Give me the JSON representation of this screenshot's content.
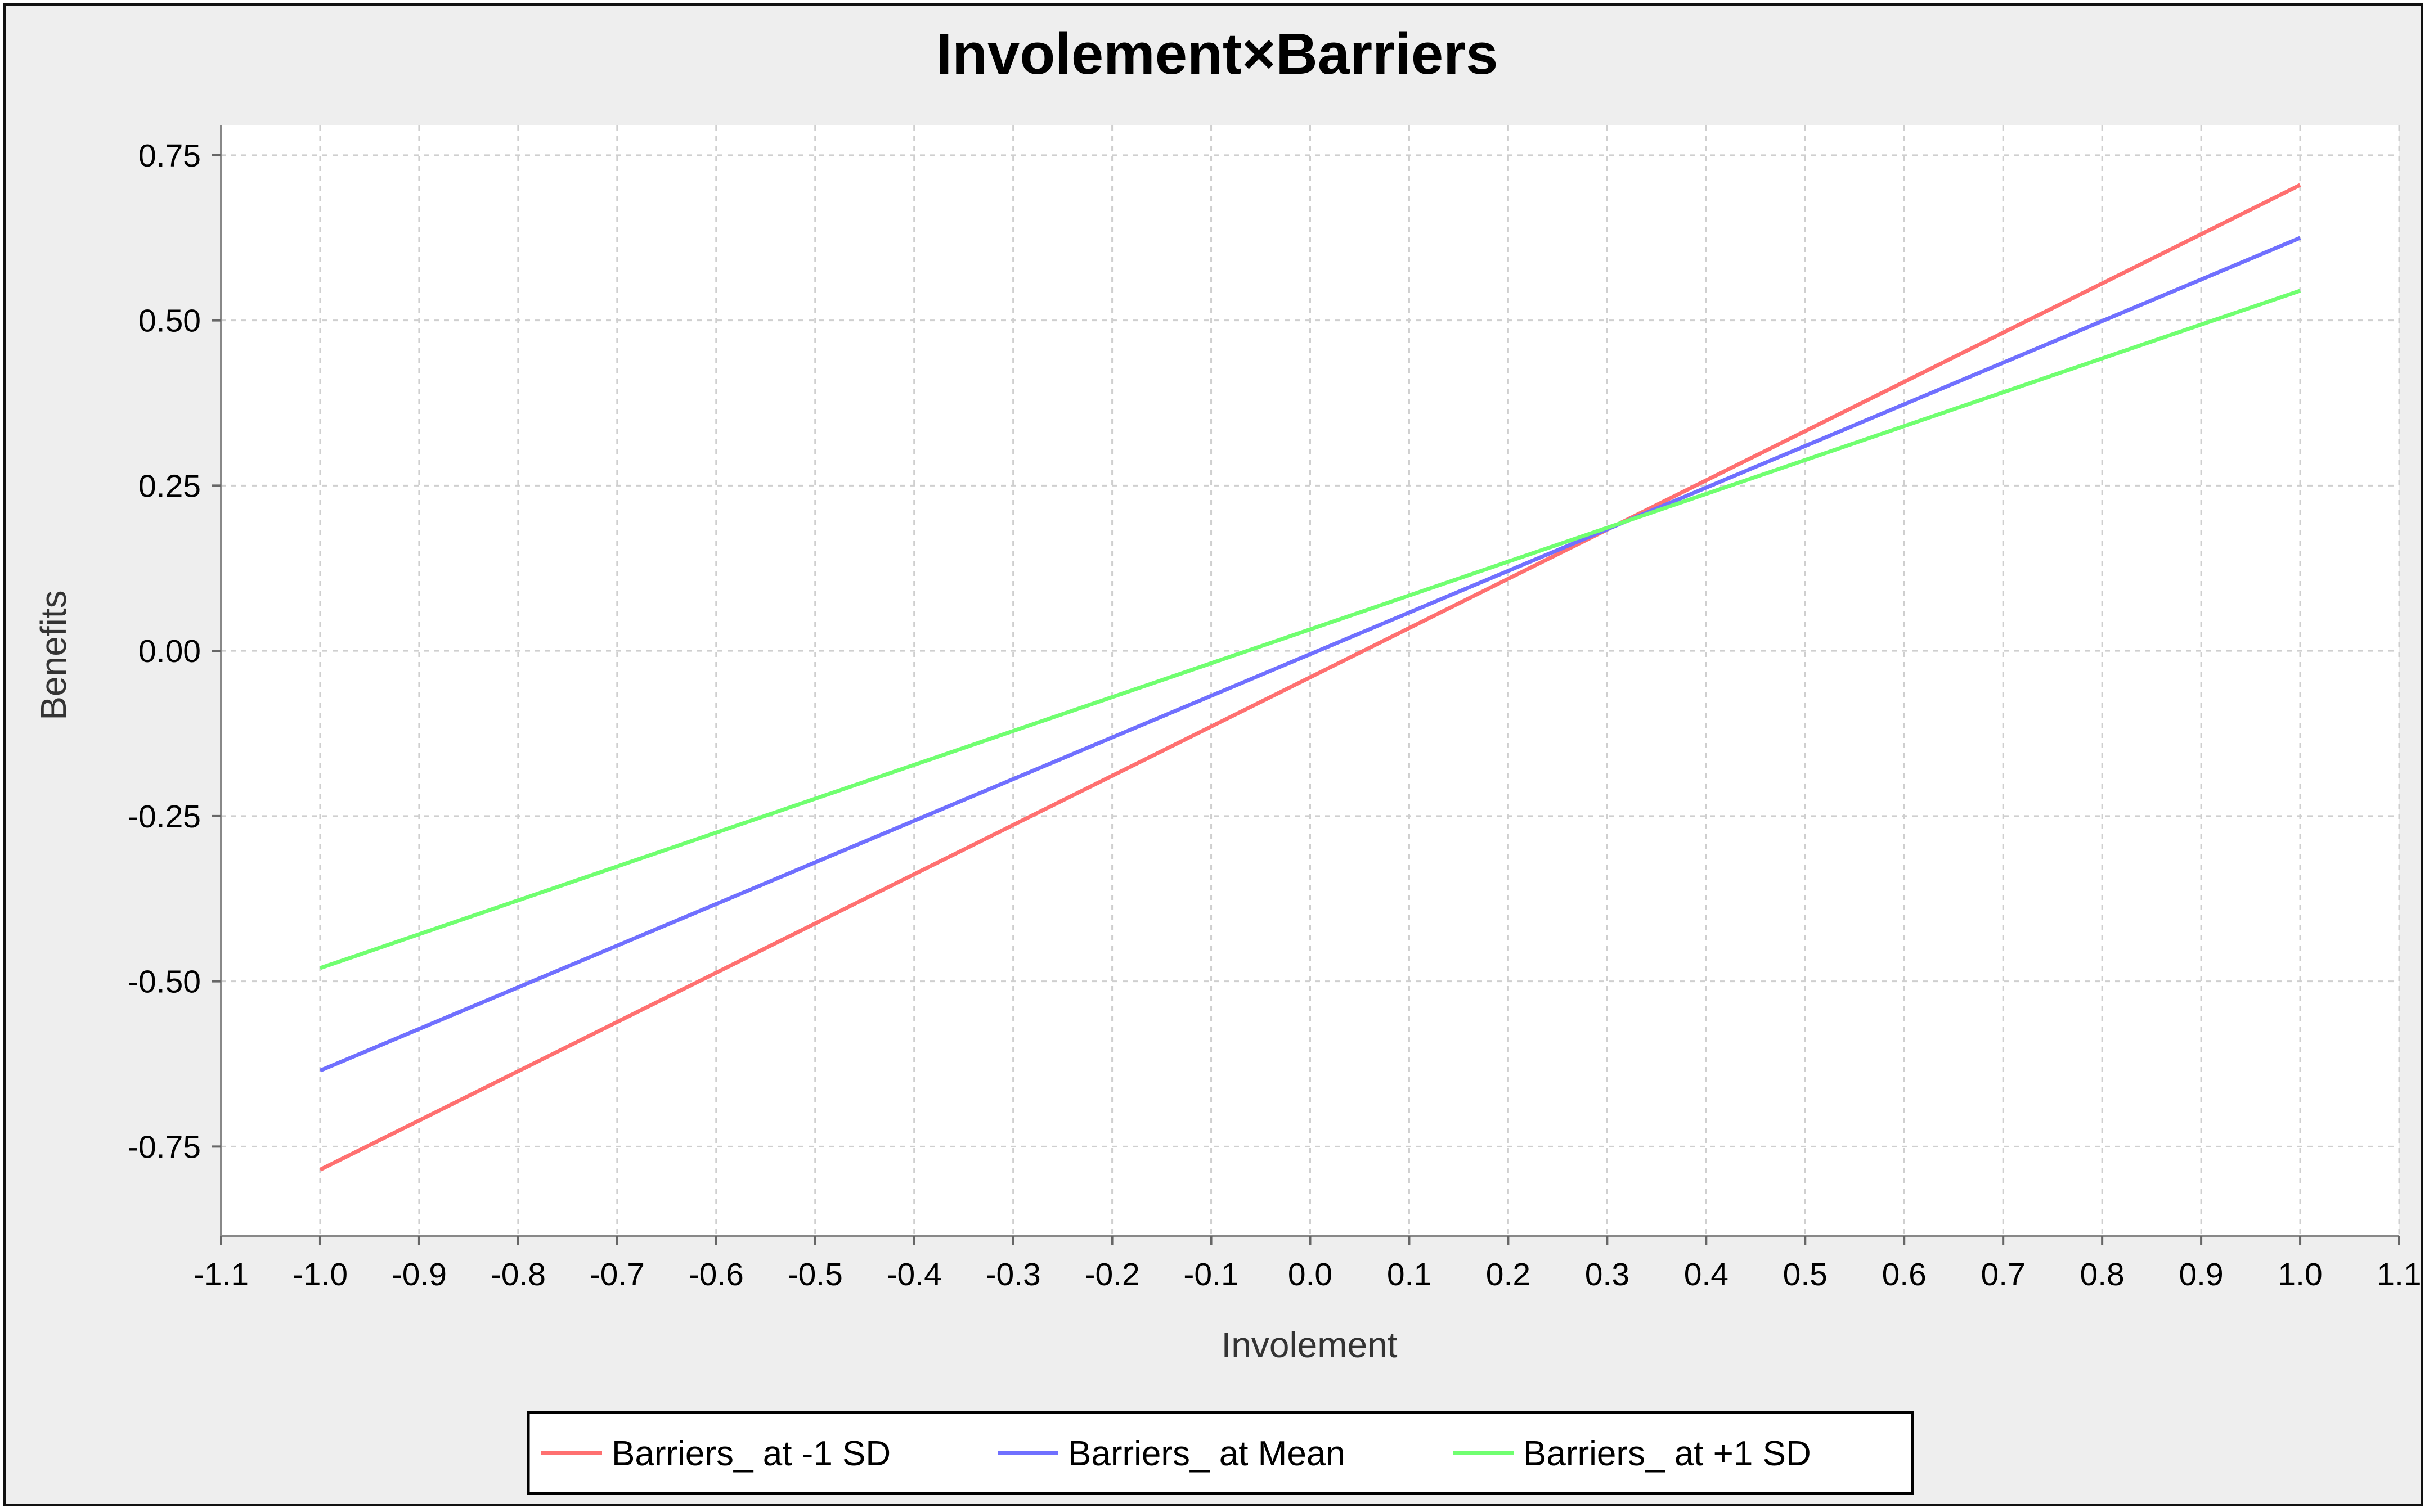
{
  "chart_data": {
    "type": "line",
    "title": "Involement×Barriers",
    "xlabel": "Involement",
    "ylabel": "Benefits",
    "xlim": [
      -1.1,
      1.1
    ],
    "ylim": [
      -0.885,
      0.795
    ],
    "x_ticks": [
      "-1.1",
      "-1.0",
      "-0.9",
      "-0.8",
      "-0.7",
      "-0.6",
      "-0.5",
      "-0.4",
      "-0.3",
      "-0.2",
      "-0.1",
      "0.0",
      "0.1",
      "0.2",
      "0.3",
      "0.4",
      "0.5",
      "0.6",
      "0.7",
      "0.8",
      "0.9",
      "1.0",
      "1.1"
    ],
    "y_ticks": [
      "0.75",
      "0.50",
      "0.25",
      "0.00",
      "-0.25",
      "-0.50",
      "-0.75"
    ],
    "grid": true,
    "legend_position": "bottom",
    "series": [
      {
        "name": "Barriers_ at -1 SD",
        "color": "#ff7070",
        "x": [
          -1.0,
          1.0
        ],
        "y": [
          -0.785,
          0.705
        ]
      },
      {
        "name": "Barriers_ at Mean",
        "color": "#7070ff",
        "x": [
          -1.0,
          1.0
        ],
        "y": [
          -0.635,
          0.625
        ]
      },
      {
        "name": "Barriers_ at +1 SD",
        "color": "#70ff70",
        "x": [
          -1.0,
          1.0
        ],
        "y": [
          -0.48,
          0.545
        ]
      }
    ]
  }
}
